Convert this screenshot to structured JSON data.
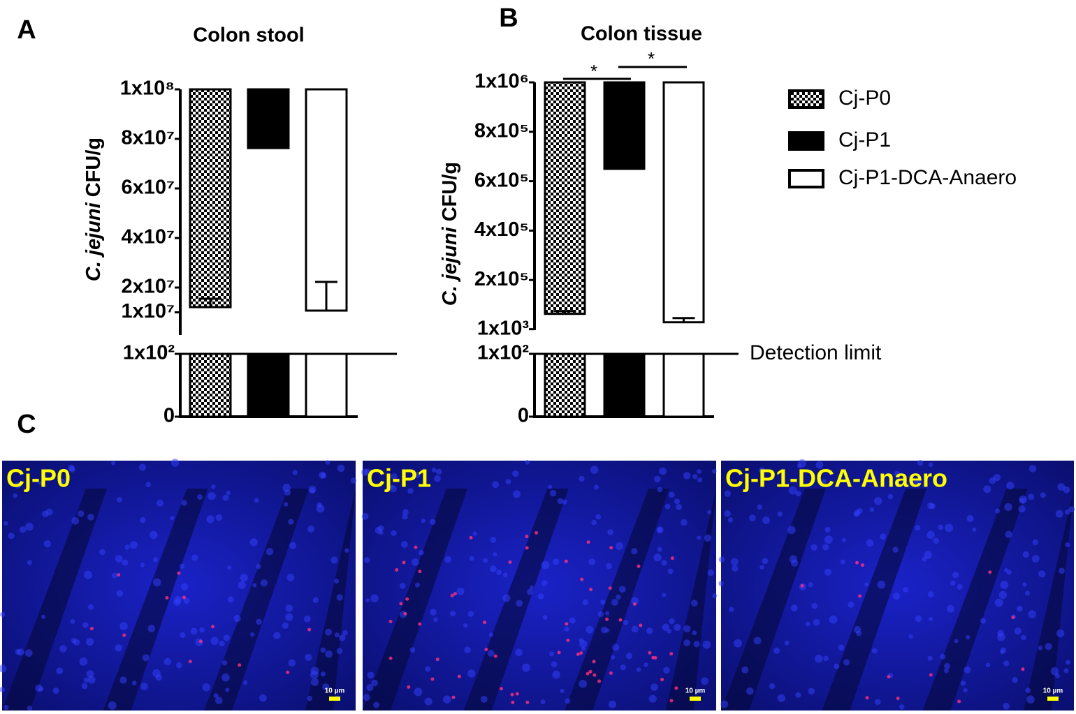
{
  "legend": {
    "entries": [
      {
        "name": "Cj-P0",
        "fill": "url(#checker)"
      },
      {
        "name": "Cj-P1",
        "fill": "#000000"
      },
      {
        "name": "Cj-P1-DCA-Anaero",
        "fill": "#ffffff"
      }
    ]
  },
  "chart_data": [
    {
      "type": "broken-bar",
      "letter": "A",
      "title": "Colon stool",
      "ylabel": {
        "italic": "C. jejuni",
        "text": "CFU/g"
      },
      "values": [
        12100000,
        76300000,
        10700000
      ],
      "errors": [
        3400000,
        14700000,
        11600000
      ],
      "upper": {
        "ylim": [
          0,
          100000000
        ],
        "yticks": [
          {
            "value": 10000000,
            "label": "1x10⁷"
          },
          {
            "value": 20000000,
            "label": "2x10⁷"
          },
          {
            "value": 40000000,
            "label": "4x10⁷"
          },
          {
            "value": 60000000,
            "label": "6x10⁷"
          },
          {
            "value": 80000000,
            "label": "8x10⁷"
          },
          {
            "value": 100000000,
            "label": "1x10⁸"
          }
        ]
      },
      "lower": {
        "ylim": [
          0,
          100
        ],
        "yticks": [
          0,
          {
            "value": 100,
            "label": "1x10²"
          }
        ]
      },
      "detection_limit": {
        "value": 100
      }
    },
    {
      "type": "broken-bar",
      "letter": "B",
      "title": "Colon tissue",
      "ylabel": {
        "italic": "C. jejuni",
        "text": "CFU/g"
      },
      "values": [
        63000,
        650000,
        29000
      ],
      "errors": [
        11000,
        330000,
        17000
      ],
      "upper": {
        "ylim": [
          0,
          1000000
        ],
        "yticks": [
          {
            "value": 1000,
            "label": "1x10³"
          },
          {
            "value": 200000,
            "label": "2x10⁵"
          },
          {
            "value": 400000,
            "label": "4x10⁵"
          },
          {
            "value": 600000,
            "label": "6x10⁵"
          },
          {
            "value": 800000,
            "label": "8x10⁵"
          },
          {
            "value": 1000000,
            "label": "1x10⁶"
          }
        ]
      },
      "lower": {
        "ylim": [
          0,
          100
        ],
        "yticks": [
          0,
          {
            "value": 100,
            "label": "1x10²"
          }
        ]
      },
      "detection_limit": {
        "value": 100,
        "label": "Detection limit"
      },
      "annotations": [
        "*",
        "*"
      ]
    }
  ],
  "panel_c": {
    "letter": "C",
    "images": [
      {
        "label": "Cj-P0",
        "scale_bar": "10 µm"
      },
      {
        "label": "Cj-P1",
        "scale_bar": "10 µm"
      },
      {
        "label": "Cj-P1-DCA-Anaero",
        "scale_bar": "10 µm"
      }
    ]
  }
}
